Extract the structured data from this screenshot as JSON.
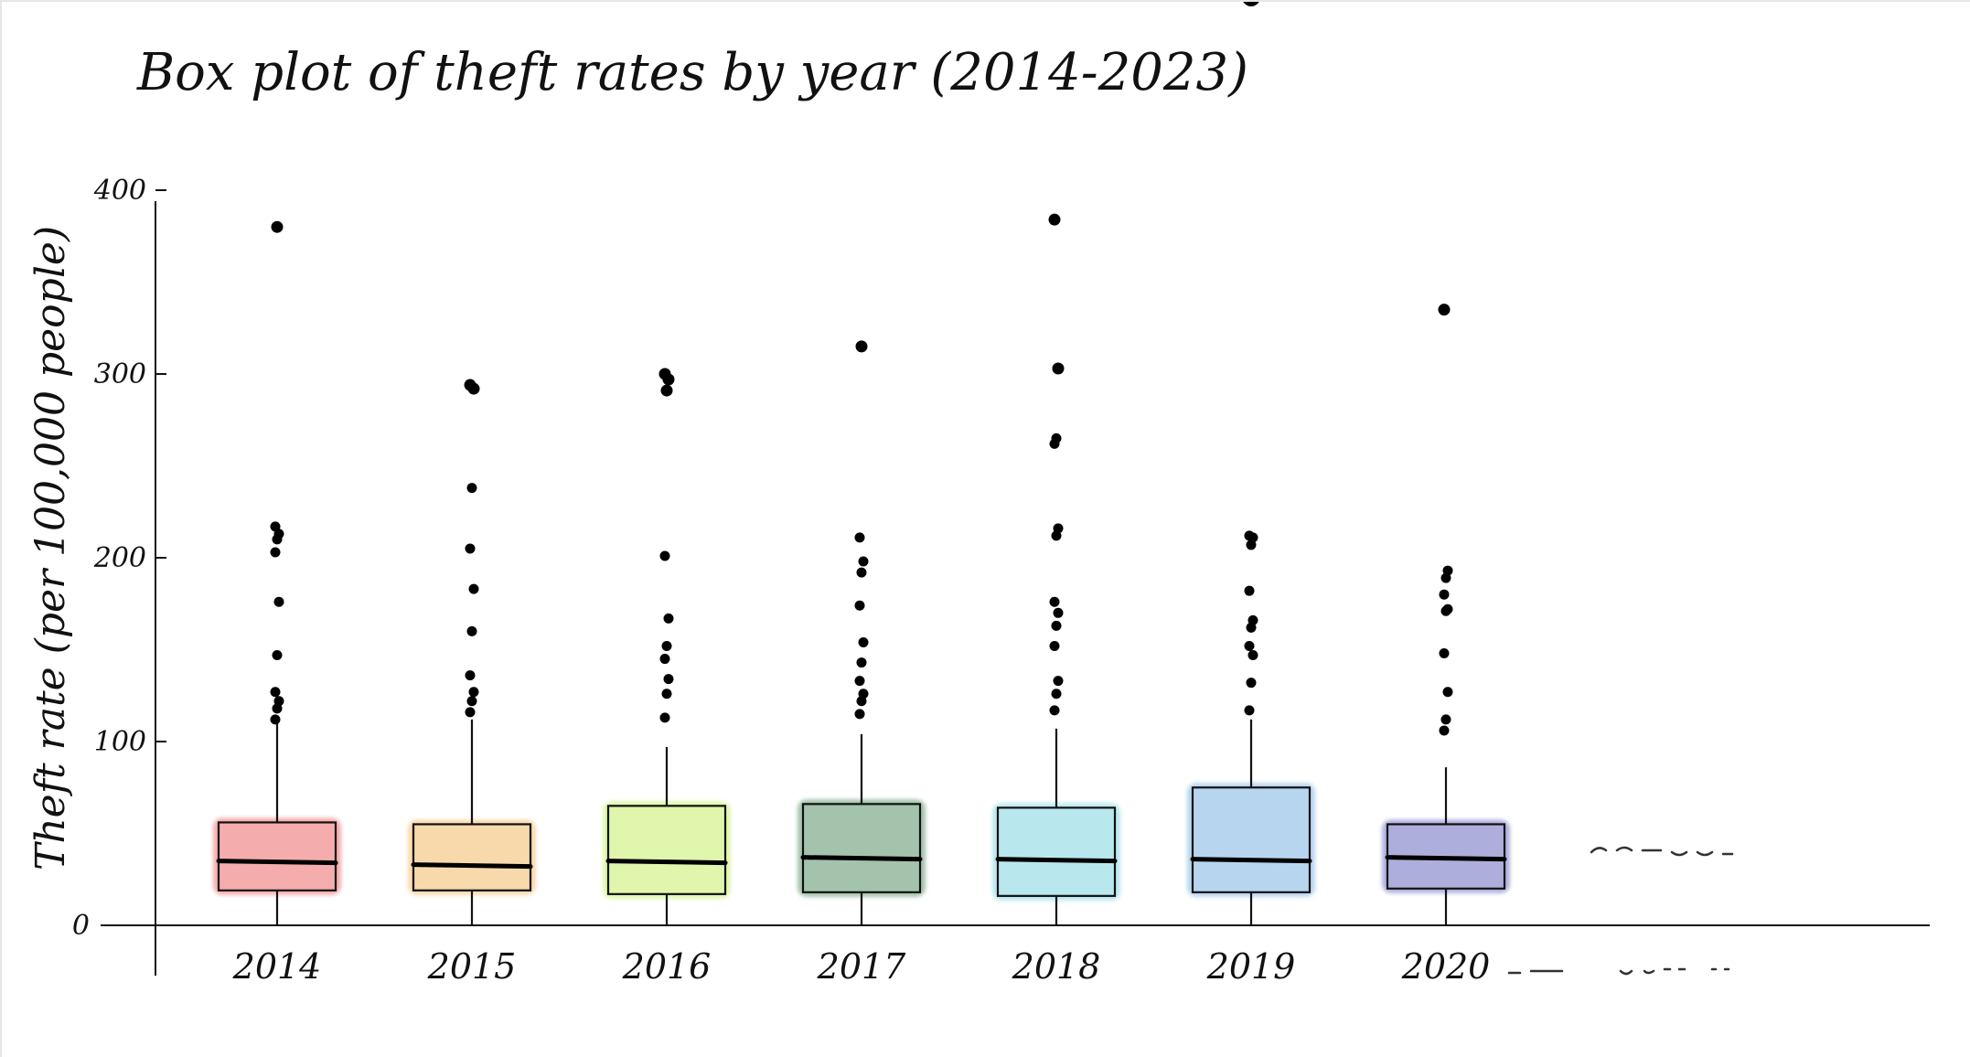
{
  "chart_data": {
    "type": "box",
    "title": "Box plot of theft rates by year (2014-2023)",
    "xlabel": "",
    "ylabel": "Theft rate (per 100,000 people)",
    "ylim": [
      0,
      520
    ],
    "yticks": [
      0,
      100,
      200,
      300,
      400
    ],
    "ytick_labels": [
      "0",
      "100",
      "200",
      "300",
      "400"
    ],
    "grid": false,
    "legend": "none",
    "categories": [
      "2014",
      "2015",
      "2016",
      "2017",
      "2018",
      "2019",
      "2020"
    ],
    "boxes": [
      {
        "category": "2014",
        "q1": 19,
        "median": 35,
        "q3": 56,
        "whisker_low": 0,
        "whisker_high": 111,
        "color": "#f4a9a8",
        "outliers": [
          112,
          118,
          122,
          127,
          147,
          176,
          203,
          210,
          213,
          217,
          380
        ]
      },
      {
        "category": "2015",
        "q1": 19,
        "median": 33,
        "q3": 55,
        "whisker_low": 0,
        "whisker_high": 112,
        "color": "#f8d7a8",
        "outliers": [
          116,
          122,
          127,
          136,
          160,
          183,
          205,
          238,
          292,
          294
        ]
      },
      {
        "category": "2016",
        "q1": 17,
        "median": 35,
        "q3": 65,
        "whisker_low": 0,
        "whisker_high": 97,
        "color": "#dff6a8",
        "outliers": [
          113,
          126,
          134,
          145,
          152,
          167,
          201,
          291,
          297,
          300
        ]
      },
      {
        "category": "2017",
        "q1": 18,
        "median": 37,
        "q3": 66,
        "whisker_low": 0,
        "whisker_high": 104,
        "color": "#9fc0a8",
        "outliers": [
          115,
          122,
          126,
          133,
          143,
          154,
          174,
          192,
          198,
          211,
          315
        ]
      },
      {
        "category": "2018",
        "q1": 16,
        "median": 36,
        "q3": 64,
        "whisker_low": 0,
        "whisker_high": 107,
        "color": "#b6e6ee",
        "outliers": [
          117,
          126,
          133,
          152,
          163,
          170,
          176,
          212,
          216,
          262,
          265,
          303,
          384
        ]
      },
      {
        "category": "2019",
        "q1": 18,
        "median": 36,
        "q3": 75,
        "whisker_low": 0,
        "whisker_high": 112,
        "color": "#b4d3ef",
        "outliers": [
          117,
          132,
          147,
          152,
          162,
          166,
          182,
          207,
          211,
          212,
          505
        ]
      },
      {
        "category": "2020",
        "q1": 20,
        "median": 37,
        "q3": 55,
        "whisker_low": 0,
        "whisker_high": 86,
        "color": "#aaaadb",
        "outliers": [
          106,
          112,
          127,
          148,
          171,
          172,
          180,
          189,
          193,
          335
        ]
      }
    ],
    "trailing_marks": "unlabeled dashes after 2020"
  }
}
